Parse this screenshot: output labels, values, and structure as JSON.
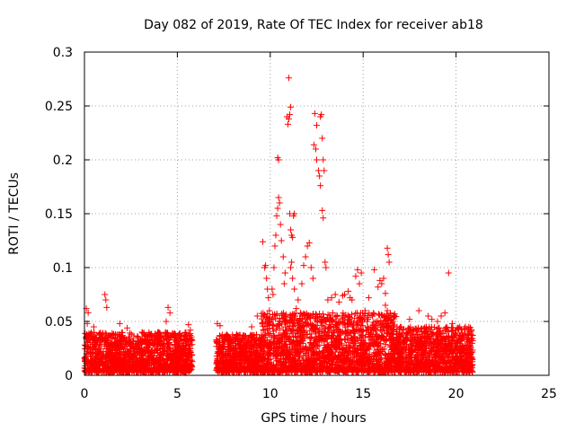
{
  "chart_data": {
    "type": "scatter",
    "title": "Day 082 of 2019, Rate Of TEC Index for receiver ab18",
    "xlabel": "GPS time / hours",
    "ylabel": "ROTI / TECUs",
    "xlim": [
      0,
      25
    ],
    "ylim": [
      0,
      0.3
    ],
    "xticks": [
      0,
      5,
      10,
      15,
      20,
      25
    ],
    "xtick_labels": [
      "0",
      "5",
      "10",
      "15",
      "20",
      "25"
    ],
    "yticks": [
      0,
      0.05,
      0.1,
      0.15,
      0.2,
      0.25,
      0.3
    ],
    "ytick_labels": [
      "0",
      "0.05",
      "0.1",
      "0.15",
      "0.2",
      "0.25",
      "0.3"
    ],
    "grid": true,
    "marker": "+",
    "color": "#ff0000",
    "series": [
      {
        "name": "ROTI",
        "points": [
          [
            0.1,
            0.062
          ],
          [
            0.2,
            0.058
          ],
          [
            0.15,
            0.048
          ],
          [
            1.1,
            0.075
          ],
          [
            1.15,
            0.07
          ],
          [
            1.2,
            0.063
          ],
          [
            0.5,
            0.045
          ],
          [
            1.9,
            0.048
          ],
          [
            2.3,
            0.044
          ],
          [
            3.1,
            0.04
          ],
          [
            4.5,
            0.063
          ],
          [
            4.6,
            0.058
          ],
          [
            4.4,
            0.05
          ],
          [
            5.6,
            0.047
          ],
          [
            5.7,
            0.042
          ],
          [
            7.15,
            0.048
          ],
          [
            7.3,
            0.046
          ],
          [
            8.2,
            0.038
          ],
          [
            9.0,
            0.045
          ],
          [
            9.3,
            0.055
          ],
          [
            9.6,
            0.124
          ],
          [
            9.7,
            0.1
          ],
          [
            9.75,
            0.102
          ],
          [
            9.8,
            0.09
          ],
          [
            9.85,
            0.08
          ],
          [
            9.9,
            0.072
          ],
          [
            9.95,
            0.06
          ],
          [
            10.1,
            0.08
          ],
          [
            10.15,
            0.075
          ],
          [
            10.2,
            0.1
          ],
          [
            10.25,
            0.12
          ],
          [
            10.3,
            0.13
          ],
          [
            10.35,
            0.148
          ],
          [
            10.4,
            0.155
          ],
          [
            10.45,
            0.165
          ],
          [
            10.5,
            0.16
          ],
          [
            10.55,
            0.14
          ],
          [
            10.4,
            0.202
          ],
          [
            10.45,
            0.2
          ],
          [
            10.6,
            0.125
          ],
          [
            10.7,
            0.11
          ],
          [
            10.8,
            0.095
          ],
          [
            10.75,
            0.085
          ],
          [
            10.9,
            0.24
          ],
          [
            10.95,
            0.233
          ],
          [
            11.0,
            0.238
          ],
          [
            11.05,
            0.242
          ],
          [
            11.1,
            0.249
          ],
          [
            11.0,
            0.276
          ],
          [
            11.05,
            0.15
          ],
          [
            11.1,
            0.135
          ],
          [
            11.15,
            0.13
          ],
          [
            11.2,
            0.128
          ],
          [
            11.25,
            0.148
          ],
          [
            11.3,
            0.15
          ],
          [
            11.1,
            0.1
          ],
          [
            11.15,
            0.105
          ],
          [
            11.2,
            0.09
          ],
          [
            11.3,
            0.08
          ],
          [
            11.4,
            0.062
          ],
          [
            11.5,
            0.07
          ],
          [
            11.7,
            0.085
          ],
          [
            11.8,
            0.102
          ],
          [
            11.9,
            0.11
          ],
          [
            12.0,
            0.12
          ],
          [
            12.1,
            0.123
          ],
          [
            12.2,
            0.1
          ],
          [
            12.3,
            0.09
          ],
          [
            12.4,
            0.243
          ],
          [
            12.5,
            0.232
          ],
          [
            12.35,
            0.214
          ],
          [
            12.45,
            0.21
          ],
          [
            12.5,
            0.2
          ],
          [
            12.6,
            0.19
          ],
          [
            12.65,
            0.185
          ],
          [
            12.7,
            0.24
          ],
          [
            12.75,
            0.242
          ],
          [
            12.8,
            0.22
          ],
          [
            12.85,
            0.2
          ],
          [
            12.9,
            0.19
          ],
          [
            12.7,
            0.176
          ],
          [
            12.8,
            0.153
          ],
          [
            12.85,
            0.146
          ],
          [
            12.95,
            0.105
          ],
          [
            13.0,
            0.1
          ],
          [
            13.1,
            0.07
          ],
          [
            13.3,
            0.072
          ],
          [
            13.5,
            0.075
          ],
          [
            13.7,
            0.068
          ],
          [
            13.9,
            0.074
          ],
          [
            14.0,
            0.075
          ],
          [
            14.2,
            0.078
          ],
          [
            14.3,
            0.072
          ],
          [
            14.4,
            0.07
          ],
          [
            14.6,
            0.092
          ],
          [
            14.7,
            0.098
          ],
          [
            14.9,
            0.095
          ],
          [
            14.8,
            0.085
          ],
          [
            15.1,
            0.06
          ],
          [
            15.3,
            0.072
          ],
          [
            15.5,
            0.055
          ],
          [
            15.6,
            0.098
          ],
          [
            15.8,
            0.082
          ],
          [
            15.9,
            0.088
          ],
          [
            16.0,
            0.085
          ],
          [
            16.1,
            0.09
          ],
          [
            16.2,
            0.076
          ],
          [
            16.3,
            0.118
          ],
          [
            16.35,
            0.112
          ],
          [
            16.4,
            0.105
          ],
          [
            16.2,
            0.065
          ],
          [
            16.3,
            0.06
          ],
          [
            16.6,
            0.05
          ],
          [
            17.0,
            0.045
          ],
          [
            17.5,
            0.052
          ],
          [
            18.0,
            0.06
          ],
          [
            18.5,
            0.055
          ],
          [
            18.7,
            0.052
          ],
          [
            19.0,
            0.05
          ],
          [
            19.2,
            0.055
          ],
          [
            19.4,
            0.058
          ],
          [
            19.6,
            0.095
          ],
          [
            19.8,
            0.048
          ],
          [
            20.0,
            0.042
          ],
          [
            20.2,
            0.045
          ],
          [
            20.5,
            0.045
          ],
          [
            20.8,
            0.038
          ]
        ],
        "dense_bands": [
          {
            "x": [
              0,
              5.8
            ],
            "y_min": 0.003,
            "y_max": 0.04
          },
          {
            "x": [
              7.1,
              9.5
            ],
            "y_min": 0.003,
            "y_max": 0.038
          },
          {
            "x": [
              9.5,
              16.8
            ],
            "y_min": 0.003,
            "y_max": 0.058
          },
          {
            "x": [
              16.8,
              20.9
            ],
            "y_min": 0.003,
            "y_max": 0.045
          }
        ]
      }
    ]
  }
}
